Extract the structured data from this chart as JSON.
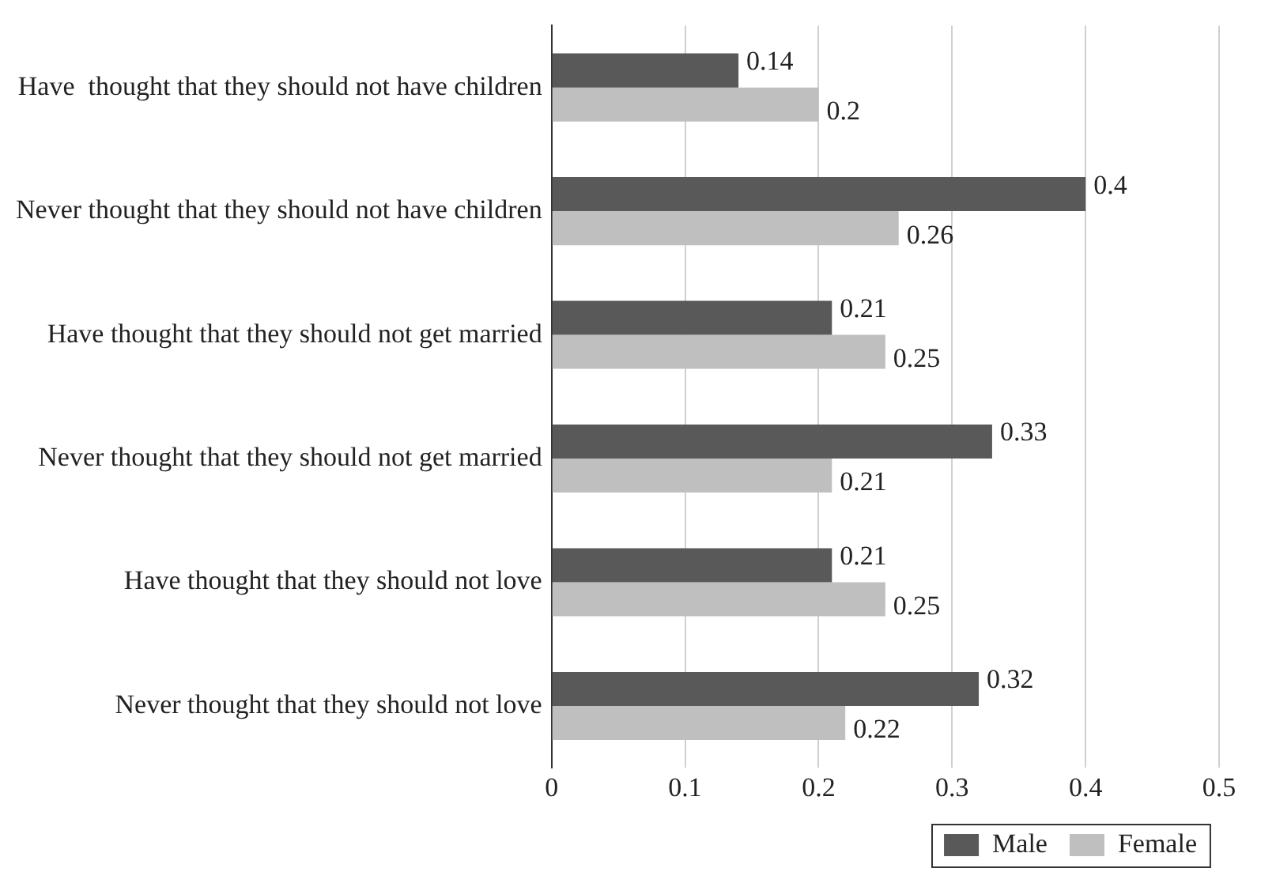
{
  "chart_data": {
    "type": "bar",
    "orientation": "horizontal",
    "categories": [
      "Have  thought that they should not have children",
      "Never thought that they should not have children",
      "Have thought that they should not get married",
      "Never thought that they should not get married",
      "Have thought that they should not love",
      "Never thought that they should not love"
    ],
    "series": [
      {
        "name": "Male",
        "color": "#595959",
        "values": [
          0.14,
          0.4,
          0.21,
          0.33,
          0.21,
          0.32
        ]
      },
      {
        "name": "Female",
        "color": "#bfbfbf",
        "values": [
          0.2,
          0.26,
          0.25,
          0.21,
          0.25,
          0.22
        ]
      }
    ],
    "xlim": [
      0,
      0.5
    ],
    "xticks": [
      0,
      0.1,
      0.2,
      0.3,
      0.4,
      0.5
    ],
    "grid": "x",
    "legend": "bottom",
    "data_labels": true
  }
}
